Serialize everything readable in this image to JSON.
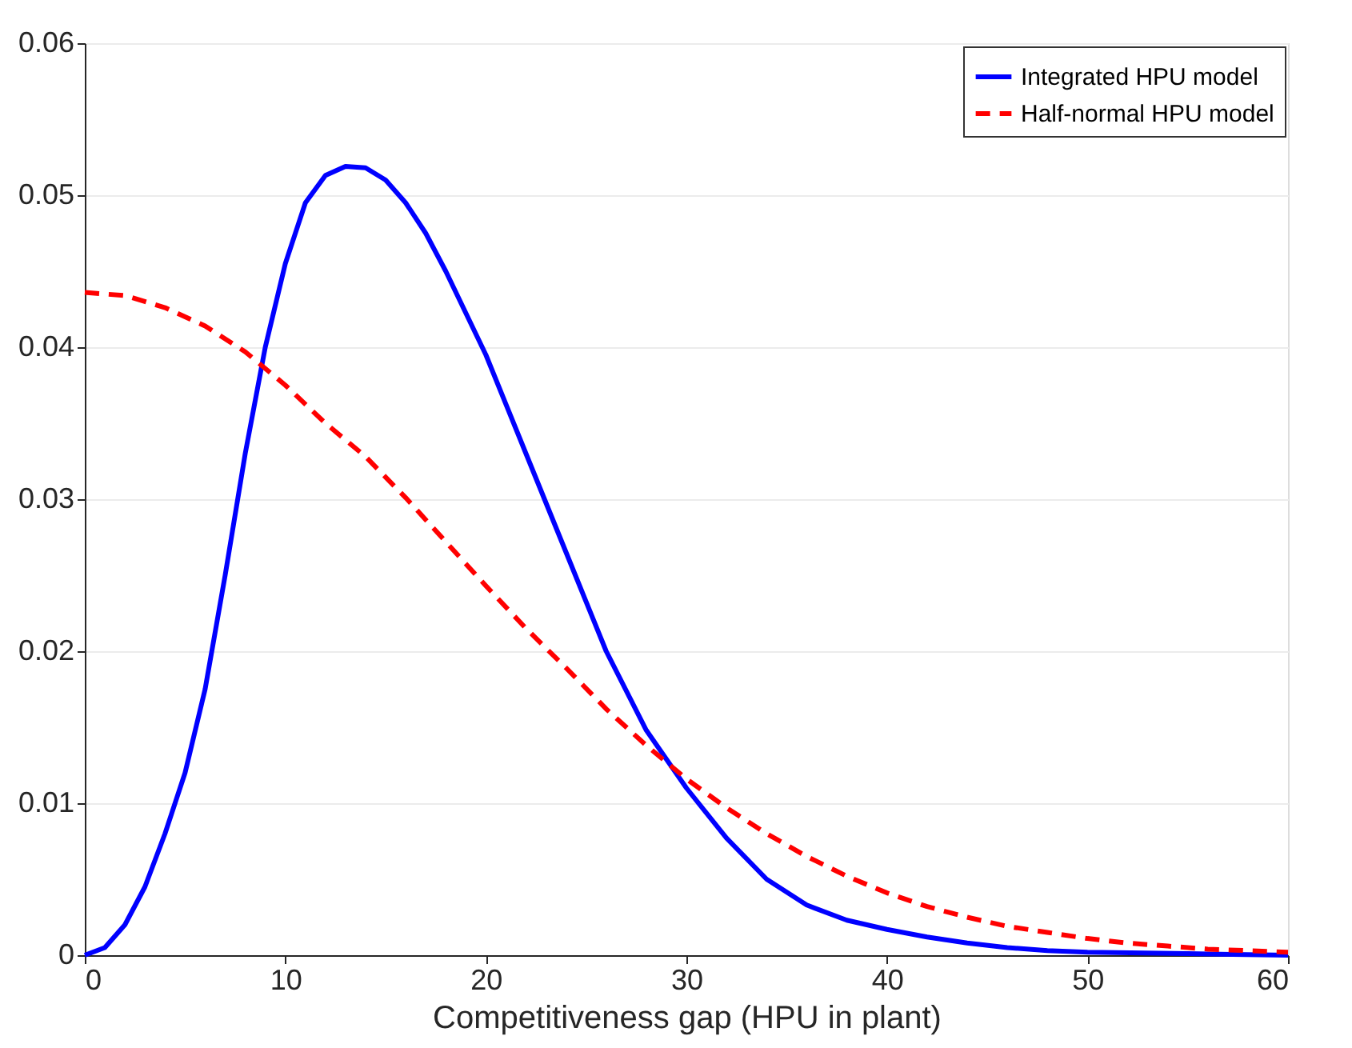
{
  "chart_data": {
    "type": "line",
    "xlabel": "Competitiveness gap (HPU in plant)",
    "xlim": [
      0,
      60
    ],
    "xticks": [
      0,
      10,
      20,
      30,
      40,
      50,
      60
    ],
    "ylim": [
      0,
      0.06
    ],
    "yticks": [
      0,
      0.01,
      0.02,
      0.03,
      0.04,
      0.05,
      0.06
    ],
    "grid": "y",
    "legend": "top right",
    "marker": "none",
    "series": [
      {
        "name": "Integrated HPU model",
        "color": "#0000ff",
        "line_style": "solid",
        "x": [
          0,
          1,
          2,
          3,
          4,
          5,
          6,
          7,
          8,
          9,
          10,
          11,
          12,
          13,
          14,
          15,
          16,
          17,
          18,
          20,
          22,
          24,
          26,
          28,
          30,
          32,
          34,
          36,
          38,
          40,
          42,
          44,
          46,
          48,
          50,
          55,
          60
        ],
        "values": [
          0,
          0.0005,
          0.002,
          0.0045,
          0.008,
          0.012,
          0.0175,
          0.025,
          0.033,
          0.04,
          0.0455,
          0.0495,
          0.0513,
          0.0519,
          0.0518,
          0.051,
          0.0495,
          0.0475,
          0.045,
          0.0395,
          0.033,
          0.0265,
          0.02,
          0.0148,
          0.011,
          0.0077,
          0.005,
          0.0033,
          0.0023,
          0.0017,
          0.0012,
          0.0008,
          0.0005,
          0.0003,
          0.0002,
          0.0001,
          0
        ]
      },
      {
        "name": "Half-normal HPU model",
        "color": "#ff0000",
        "line_style": "dashed",
        "x": [
          0,
          2,
          4,
          6,
          8,
          10,
          12,
          14,
          16,
          18,
          20,
          22,
          24,
          26,
          28,
          30,
          32,
          34,
          36,
          38,
          40,
          42,
          44,
          46,
          48,
          50,
          52,
          54,
          56,
          58,
          60
        ],
        "values": [
          0.0436,
          0.0434,
          0.0426,
          0.0414,
          0.0397,
          0.0375,
          0.035,
          0.0328,
          0.0301,
          0.0272,
          0.0243,
          0.0215,
          0.0189,
          0.0162,
          0.0138,
          0.0116,
          0.0097,
          0.008,
          0.0065,
          0.0052,
          0.0041,
          0.0032,
          0.0025,
          0.0019,
          0.0015,
          0.0011,
          0.0008,
          0.0006,
          0.0004,
          0.0003,
          0.0002
        ]
      }
    ]
  }
}
